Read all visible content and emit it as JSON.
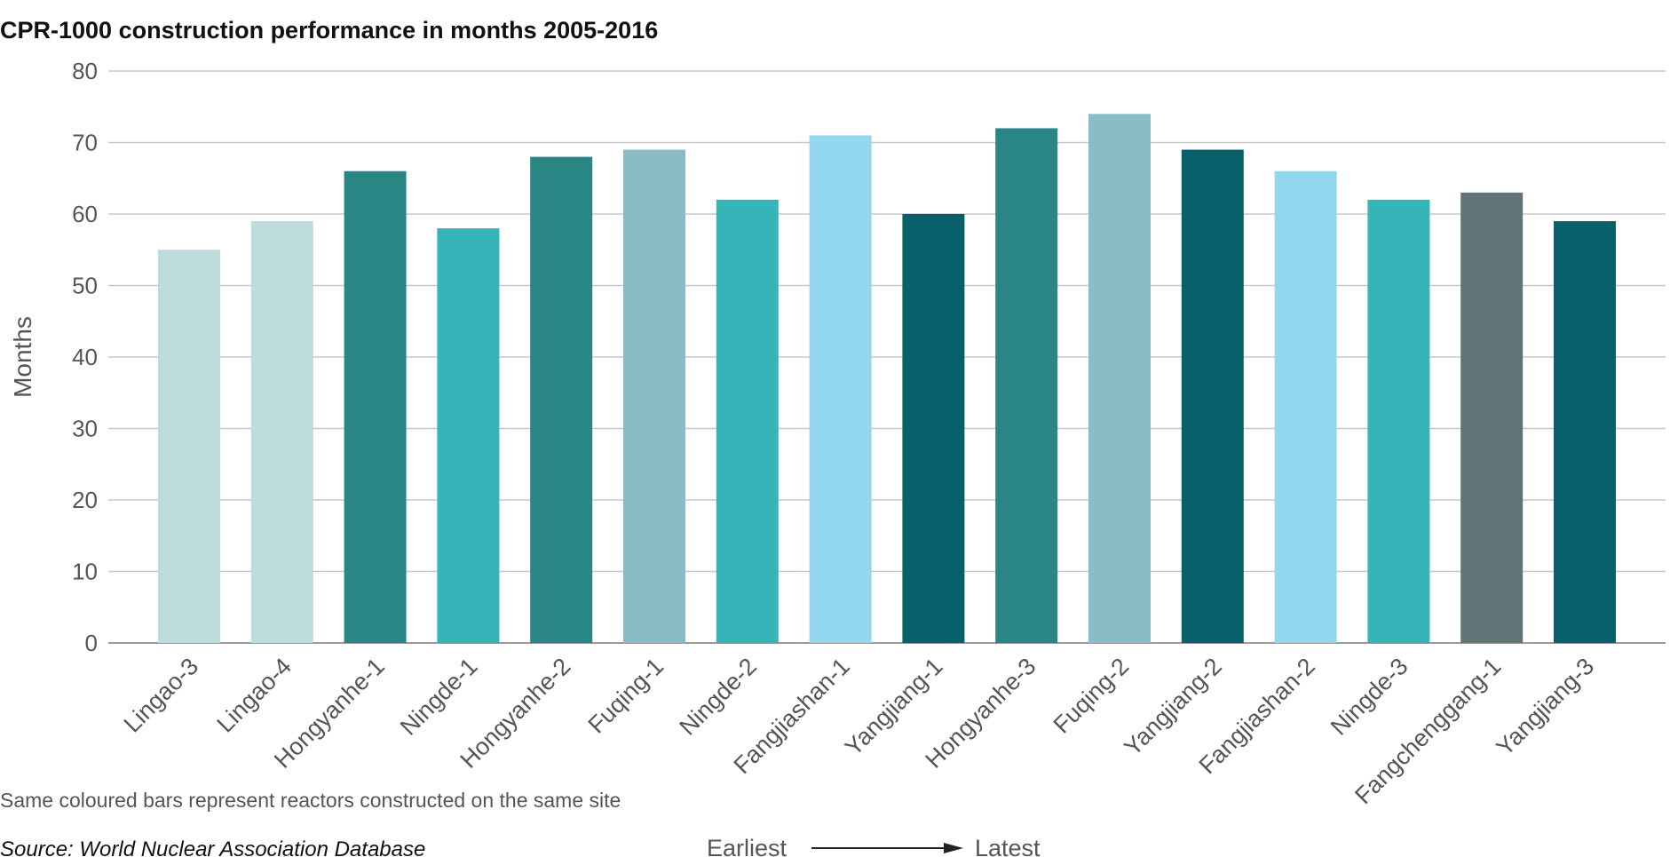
{
  "chart_data": {
    "type": "bar",
    "title": "CPR-1000 construction performance in months 2005-2016",
    "ylabel": "Months",
    "xlabel": "",
    "ylim": [
      0,
      80
    ],
    "yticks": [
      0,
      10,
      20,
      30,
      40,
      50,
      60,
      70,
      80
    ],
    "grid": true,
    "categories": [
      "Lingao-3",
      "Lingao-4",
      "Hongyanhe-1",
      "Ningde-1",
      "Hongyanhe-2",
      "Fuqing-1",
      "Ningde-2",
      "Fangjiashan-1",
      "Yangjiang-1",
      "Hongyanhe-3",
      "Fuqing-2",
      "Yangjiang-2",
      "Fangjiashan-2",
      "Ningde-3",
      "Fangchenggang-1",
      "Yangjiang-3"
    ],
    "values": [
      55,
      59,
      66,
      58,
      68,
      69,
      62,
      71,
      60,
      72,
      74,
      69,
      66,
      62,
      63,
      59
    ],
    "colors": [
      "#bddcdb",
      "#bddcdb",
      "#2a8585",
      "#36b4b8",
      "#2a8585",
      "#8abcc8",
      "#36b4b8",
      "#93d7ee",
      "#07606a",
      "#2a8585",
      "#8abcc8",
      "#07606a",
      "#93d7ee",
      "#36b4b8",
      "#627576",
      "#07606a"
    ],
    "note": "Same coloured bars represent reactors constructed on the same site",
    "source": "Source: World Nuclear Association Database",
    "order_start": "Earliest",
    "order_end": "Latest"
  }
}
